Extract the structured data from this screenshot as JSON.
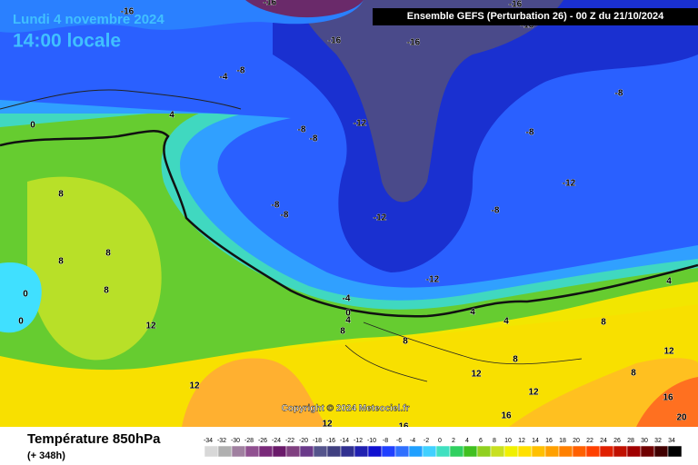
{
  "header": {
    "date": "Lundi 4 novembre 2024",
    "time": "14:00 locale",
    "run": "Ensemble GEFS  (Perturbation 26)  -  00 Z du 21/10/2024"
  },
  "footer": {
    "variable": "Température 850hPa",
    "lead": "(+ 348h)",
    "copyright": "Copyright © 2024 Meteociel.fr"
  },
  "contour_labels": [
    -16,
    -16,
    -16,
    -16,
    -16,
    -16,
    -8,
    -4,
    4,
    0,
    -8,
    -8,
    -12,
    -8,
    -8,
    -12,
    8,
    -8,
    -8,
    -12,
    -8,
    8,
    8,
    8,
    0,
    0,
    12,
    -12,
    -4,
    0,
    4,
    4,
    4,
    8,
    8,
    8,
    12,
    12,
    12,
    8,
    12,
    8,
    12,
    16,
    16,
    16,
    20,
    4
  ],
  "legend": {
    "labels": [
      -34,
      -32,
      -30,
      -28,
      -26,
      -24,
      -22,
      -20,
      -18,
      -16,
      -14,
      -12,
      -10,
      -8,
      -6,
      -4,
      -2,
      0,
      2,
      4,
      6,
      8,
      10,
      12,
      14,
      16,
      18,
      20,
      22,
      24,
      26,
      28,
      30,
      32,
      34
    ],
    "colors": [
      "#d8d8d8",
      "#b0b0b0",
      "#a080a0",
      "#905090",
      "#7a2a7a",
      "#6a1a6a",
      "#804080",
      "#6a3a8a",
      "#54548c",
      "#404080",
      "#303090",
      "#2020b0",
      "#1010d0",
      "#2040ff",
      "#3070ff",
      "#20a0ff",
      "#40d0ff",
      "#40e0c0",
      "#30d060",
      "#40c020",
      "#90d020",
      "#c8e020",
      "#f0f000",
      "#ffe000",
      "#ffc000",
      "#ffa000",
      "#ff8000",
      "#ff6000",
      "#ff4000",
      "#e02000",
      "#c01000",
      "#a00000",
      "#700000",
      "#400000",
      "#000000"
    ]
  }
}
